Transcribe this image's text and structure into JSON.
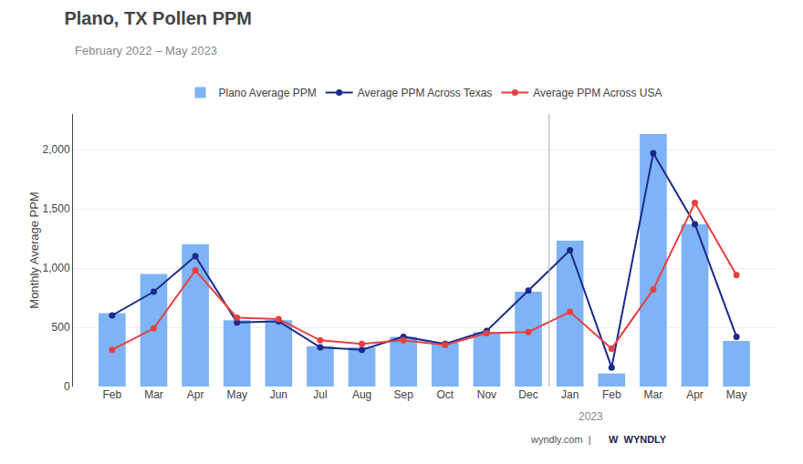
{
  "chart_data": {
    "type": "bar",
    "title": "Plano, TX Pollen PPM",
    "subtitle": "February 2022 – May 2023",
    "ylabel": "Monthly Average PPM",
    "categories": [
      "Feb",
      "Mar",
      "Apr",
      "May",
      "Jun",
      "Jul",
      "Aug",
      "Sep",
      "Oct",
      "Nov",
      "Dec",
      "Jan",
      "Feb",
      "Mar",
      "Apr",
      "May"
    ],
    "series": [
      {
        "name": "Plano Average PPM",
        "type": "bar",
        "color": "#7EB3F5",
        "values": [
          620,
          950,
          1200,
          560,
          560,
          340,
          330,
          420,
          370,
          460,
          800,
          1230,
          110,
          2130,
          1370,
          385
        ]
      },
      {
        "name": "Average PPM Across Texas",
        "type": "line",
        "color": "#1B2A8A",
        "marker": "circle",
        "values": [
          600,
          800,
          1100,
          540,
          550,
          330,
          310,
          420,
          360,
          470,
          810,
          1150,
          160,
          1970,
          1370,
          420
        ]
      },
      {
        "name": "Average PPM Across USA",
        "type": "line",
        "color": "#E84040",
        "marker": "circle",
        "values": [
          310,
          490,
          980,
          580,
          570,
          390,
          360,
          390,
          350,
          450,
          460,
          630,
          320,
          820,
          1550,
          940
        ]
      }
    ],
    "ylim": [
      0,
      2300
    ],
    "yticks": [
      0,
      500,
      {
        "value": 1000,
        "label": "1,000"
      },
      {
        "value": 1500,
        "label": "1,500"
      },
      {
        "value": 2000,
        "label": "2,000"
      }
    ],
    "grid": true,
    "legend": "top",
    "annotations": [
      {
        "text": "2023",
        "x": 11.5
      },
      {
        "text": "wyndly.com  |"
      },
      {
        "text": "W  WYNDLY"
      }
    ]
  }
}
